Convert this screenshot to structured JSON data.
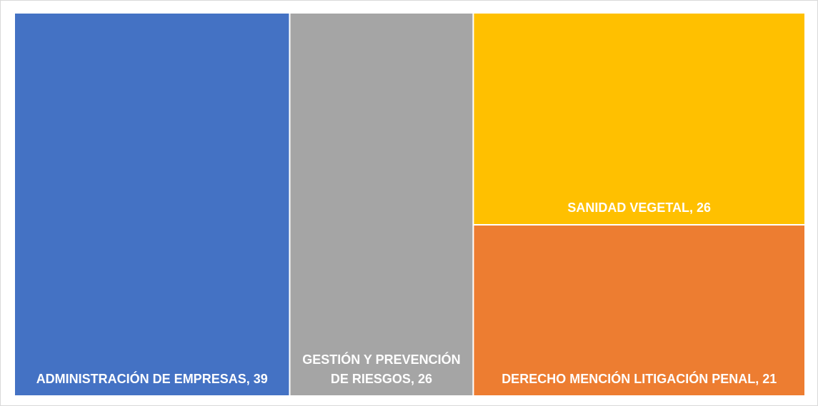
{
  "chart_data": {
    "type": "treemap",
    "categories": [
      "ADMINISTRACIÓN DE EMPRESAS",
      "GESTIÓN Y PREVENCIÓN DE RIESGOS",
      "SANIDAD VEGETAL",
      "DERECHO MENCIÓN LITIGACIÓN PENAL"
    ],
    "values": [
      39,
      26,
      26,
      21
    ],
    "colors": [
      "#4472c4",
      "#a5a5a5",
      "#ffc000",
      "#ed7d31"
    ]
  }
}
